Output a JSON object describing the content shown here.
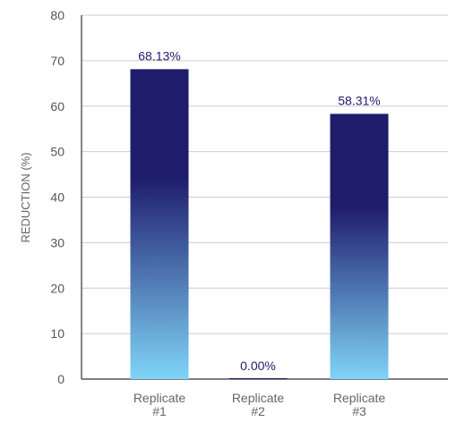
{
  "chart_data": {
    "type": "bar",
    "categories": [
      [
        "Replicate",
        "#1"
      ],
      [
        "Replicate",
        "#2"
      ],
      [
        "Replicate",
        "#3"
      ]
    ],
    "values": [
      68.13,
      0.0,
      58.31
    ],
    "data_labels": [
      "68.13%",
      "0.00%",
      "58.31%"
    ],
    "ylabel": "REDUCTION (%)",
    "ylim": [
      0,
      80
    ],
    "yticks": [
      0,
      10,
      20,
      30,
      40,
      50,
      60,
      70,
      80
    ],
    "grid": true,
    "bar_gradient": {
      "top": "#1f1c6c",
      "bottom": "#7fd4f8"
    }
  }
}
